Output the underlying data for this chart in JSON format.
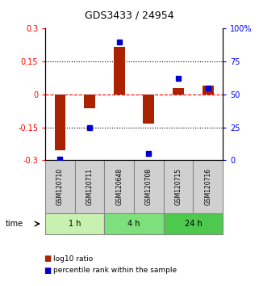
{
  "title": "GDS3433 / 24954",
  "samples": [
    "GSM120710",
    "GSM120711",
    "GSM120648",
    "GSM120708",
    "GSM120715",
    "GSM120716"
  ],
  "log10_ratio": [
    -0.255,
    -0.065,
    0.215,
    -0.135,
    0.03,
    0.04
  ],
  "percentile_rank": [
    1,
    25,
    90,
    5,
    62,
    55
  ],
  "time_groups": [
    {
      "label": "1 h",
      "indices": [
        0,
        1
      ],
      "color": "#c8f0b0"
    },
    {
      "label": "4 h",
      "indices": [
        2,
        3
      ],
      "color": "#7de07d"
    },
    {
      "label": "24 h",
      "indices": [
        4,
        5
      ],
      "color": "#4dc94d"
    }
  ],
  "bar_color": "#aa2200",
  "dot_color": "#0000cc",
  "ylim_left": [
    -0.3,
    0.3
  ],
  "ylim_right": [
    0,
    100
  ],
  "yticks_left": [
    -0.3,
    -0.15,
    0,
    0.15,
    0.3
  ],
  "ytick_labels_left": [
    "-0.3",
    "-0.15",
    "0",
    "0.15",
    "0.3"
  ],
  "yticks_right": [
    0,
    25,
    50,
    75,
    100
  ],
  "ytick_labels_right": [
    "0",
    "25",
    "50",
    "75",
    "100%"
  ],
  "hlines": [
    -0.15,
    0,
    0.15
  ],
  "hline_styles": [
    "dotted",
    "dashed",
    "dotted"
  ],
  "hline_colors": [
    "black",
    "red",
    "black"
  ],
  "sample_bg_color": "#d0d0d0",
  "sample_box_color": "#888888",
  "legend_red_label": "log10 ratio",
  "legend_blue_label": "percentile rank within the sample"
}
